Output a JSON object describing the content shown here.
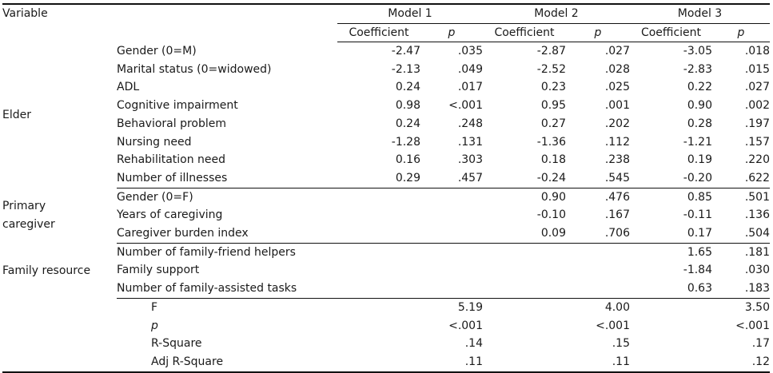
{
  "headers": {
    "variable": "Variable",
    "models": [
      "Model 1",
      "Model 2",
      "Model 3"
    ],
    "coefficient": "Coefficient",
    "p": "p"
  },
  "groups": [
    {
      "name_lines": [
        "Elder"
      ],
      "rows": [
        {
          "label": "Gender (0=M)",
          "m1c": "-2.47",
          "m1p": ".035",
          "m2c": "-2.87",
          "m2p": ".027",
          "m3c": "-3.05",
          "m3p": ".018"
        },
        {
          "label": "Marital status (0=widowed)",
          "m1c": "-2.13",
          "m1p": ".049",
          "m2c": "-2.52",
          "m2p": ".028",
          "m3c": "-2.83",
          "m3p": ".015"
        },
        {
          "label": "ADL",
          "m1c": "0.24",
          "m1p": ".017",
          "m2c": "0.23",
          "m2p": ".025",
          "m3c": "0.22",
          "m3p": ".027"
        },
        {
          "label": "Cognitive impairment",
          "m1c": "0.98",
          "m1p": "<.001",
          "m2c": "0.95",
          "m2p": ".001",
          "m3c": "0.90",
          "m3p": ".002"
        },
        {
          "label": "Behavioral problem",
          "m1c": "0.24",
          "m1p": ".248",
          "m2c": "0.27",
          "m2p": ".202",
          "m3c": "0.28",
          "m3p": ".197"
        },
        {
          "label": "Nursing need",
          "m1c": "-1.28",
          "m1p": ".131",
          "m2c": "-1.36",
          "m2p": ".112",
          "m3c": "-1.21",
          "m3p": ".157"
        },
        {
          "label": "Rehabilitation need",
          "m1c": "0.16",
          "m1p": ".303",
          "m2c": "0.18",
          "m2p": ".238",
          "m3c": "0.19",
          "m3p": ".220"
        },
        {
          "label": "Number of illnesses",
          "m1c": "0.29",
          "m1p": ".457",
          "m2c": "-0.24",
          "m2p": ".545",
          "m3c": "-0.20",
          "m3p": ".622"
        }
      ]
    },
    {
      "name_lines": [
        "Primary",
        "caregiver"
      ],
      "rows": [
        {
          "label": "Gender (0=F)",
          "m1c": "",
          "m1p": "",
          "m2c": "0.90",
          "m2p": ".476",
          "m3c": "0.85",
          "m3p": ".501"
        },
        {
          "label": "Years of caregiving",
          "m1c": "",
          "m1p": "",
          "m2c": "-0.10",
          "m2p": ".167",
          "m3c": "-0.11",
          "m3p": ".136"
        },
        {
          "label": "Caregiver burden index",
          "m1c": "",
          "m1p": "",
          "m2c": "0.09",
          "m2p": ".706",
          "m3c": "0.17",
          "m3p": ".504"
        }
      ]
    },
    {
      "name_lines": [
        "Family resource"
      ],
      "rows": [
        {
          "label": "Number of family-friend helpers",
          "m1c": "",
          "m1p": "",
          "m2c": "",
          "m2p": "",
          "m3c": "1.65",
          "m3p": ".181"
        },
        {
          "label": "Family support",
          "m1c": "",
          "m1p": "",
          "m2c": "",
          "m2p": "",
          "m3c": "-1.84",
          "m3p": ".030"
        },
        {
          "label": "Number of family-assisted tasks",
          "m1c": "",
          "m1p": "",
          "m2c": "",
          "m2p": "",
          "m3c": "0.63",
          "m3p": ".183"
        }
      ]
    }
  ],
  "summary": [
    {
      "label": "F",
      "italic": false,
      "values": [
        "5.19",
        "4.00",
        "3.50"
      ]
    },
    {
      "label": "p",
      "italic": true,
      "values": [
        "<.001",
        "<.001",
        "<.001"
      ]
    },
    {
      "label": "R-Square",
      "italic": false,
      "values": [
        ".14",
        ".15",
        ".17"
      ]
    },
    {
      "label": "Adj R-Square",
      "italic": false,
      "values": [
        ".11",
        ".11",
        ".12"
      ]
    }
  ]
}
